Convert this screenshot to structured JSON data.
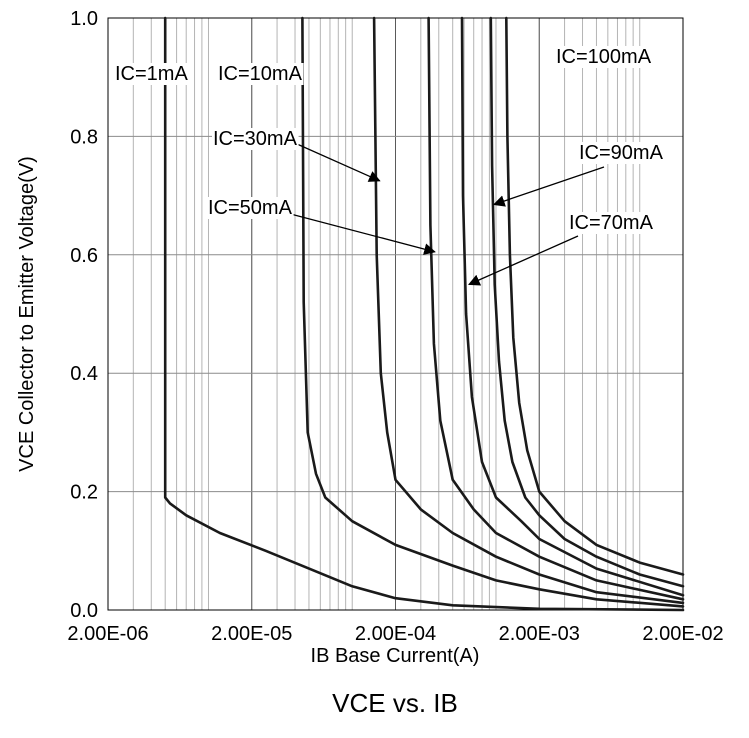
{
  "chart_data": {
    "type": "line",
    "title": "VCE vs. IB",
    "xlabel": "IB Base Current(A)",
    "ylabel": "VCE Collector to Emitter Voltage(V)",
    "x_scale": "log",
    "xlim": [
      2e-06,
      0.02
    ],
    "ylim": [
      0,
      1.0
    ],
    "x_tick_labels": [
      "2.00E-06",
      "2.00E-05",
      "2.00E-04",
      "2.00E-03",
      "2.00E-02"
    ],
    "x_tick_values": [
      2e-06,
      2e-05,
      0.0002,
      0.002,
      0.02
    ],
    "y_tick_labels": [
      "0.0",
      "0.2",
      "0.4",
      "0.6",
      "0.8",
      "1.0"
    ],
    "y_tick_values": [
      0,
      0.2,
      0.4,
      0.6,
      0.8,
      1.0
    ],
    "grid": true,
    "series": [
      {
        "name": "IC=1mA",
        "points": [
          [
            5e-06,
            1.0
          ],
          [
            5e-06,
            0.19
          ],
          [
            5.4e-06,
            0.18
          ],
          [
            7e-06,
            0.16
          ],
          [
            1.2e-05,
            0.13
          ],
          [
            2.5e-05,
            0.1
          ],
          [
            5e-05,
            0.07
          ],
          [
            0.0001,
            0.04
          ],
          [
            0.0002,
            0.02
          ],
          [
            0.0005,
            0.008
          ],
          [
            0.002,
            0.002
          ],
          [
            0.02,
            0.0
          ]
        ]
      },
      {
        "name": "IC=10mA",
        "points": [
          [
            4.5e-05,
            1.0
          ],
          [
            4.6e-05,
            0.52
          ],
          [
            4.9e-05,
            0.3
          ],
          [
            5.6e-05,
            0.23
          ],
          [
            6.5e-05,
            0.19
          ],
          [
            0.0001,
            0.15
          ],
          [
            0.0002,
            0.11
          ],
          [
            0.0005,
            0.075
          ],
          [
            0.001,
            0.05
          ],
          [
            0.002,
            0.035
          ],
          [
            0.005,
            0.018
          ],
          [
            0.02,
            0.006
          ]
        ]
      },
      {
        "name": "IC=30mA",
        "points": [
          [
            0.000142,
            1.0
          ],
          [
            0.000148,
            0.6
          ],
          [
            0.000158,
            0.4
          ],
          [
            0.000175,
            0.3
          ],
          [
            0.0002,
            0.22
          ],
          [
            0.0003,
            0.17
          ],
          [
            0.0005,
            0.13
          ],
          [
            0.001,
            0.09
          ],
          [
            0.002,
            0.06
          ],
          [
            0.005,
            0.03
          ],
          [
            0.02,
            0.012
          ]
        ]
      },
      {
        "name": "IC=50mA",
        "points": [
          [
            0.00034,
            1.0
          ],
          [
            0.00035,
            0.65
          ],
          [
            0.00037,
            0.45
          ],
          [
            0.00041,
            0.32
          ],
          [
            0.0005,
            0.22
          ],
          [
            0.0007,
            0.17
          ],
          [
            0.001,
            0.13
          ],
          [
            0.002,
            0.09
          ],
          [
            0.005,
            0.05
          ],
          [
            0.02,
            0.018
          ]
        ]
      },
      {
        "name": "IC=70mA",
        "points": [
          [
            0.00058,
            1.0
          ],
          [
            0.00059,
            0.7
          ],
          [
            0.00062,
            0.5
          ],
          [
            0.00068,
            0.36
          ],
          [
            0.0008,
            0.25
          ],
          [
            0.001,
            0.19
          ],
          [
            0.0015,
            0.15
          ],
          [
            0.002,
            0.12
          ],
          [
            0.005,
            0.07
          ],
          [
            0.02,
            0.025
          ]
        ]
      },
      {
        "name": "IC=90mA",
        "points": [
          [
            0.00092,
            1.0
          ],
          [
            0.00094,
            0.75
          ],
          [
            0.00098,
            0.55
          ],
          [
            0.00105,
            0.42
          ],
          [
            0.00115,
            0.32
          ],
          [
            0.0013,
            0.25
          ],
          [
            0.0016,
            0.19
          ],
          [
            0.002,
            0.16
          ],
          [
            0.003,
            0.12
          ],
          [
            0.005,
            0.09
          ],
          [
            0.01,
            0.06
          ],
          [
            0.02,
            0.04
          ]
        ]
      },
      {
        "name": "IC=100mA",
        "points": [
          [
            0.00118,
            1.0
          ],
          [
            0.0012,
            0.8
          ],
          [
            0.00125,
            0.6
          ],
          [
            0.00132,
            0.46
          ],
          [
            0.00145,
            0.35
          ],
          [
            0.00165,
            0.27
          ],
          [
            0.002,
            0.2
          ],
          [
            0.003,
            0.15
          ],
          [
            0.005,
            0.11
          ],
          [
            0.01,
            0.08
          ],
          [
            0.02,
            0.06
          ]
        ]
      }
    ],
    "annotations": [
      {
        "text": "IC=1mA",
        "series": "IC=1mA"
      },
      {
        "text": "IC=10mA",
        "series": "IC=10mA"
      },
      {
        "text": "IC=30mA",
        "series": "IC=30mA",
        "arrow_to": [
          0.000155,
          0.725
        ]
      },
      {
        "text": "IC=50mA",
        "series": "IC=50mA",
        "arrow_to": [
          0.000375,
          0.605
        ]
      },
      {
        "text": "IC=70mA",
        "series": "IC=70mA",
        "arrow_to": [
          0.00065,
          0.55
        ]
      },
      {
        "text": "IC=90mA",
        "series": "IC=90mA",
        "arrow_to": [
          0.00097,
          0.685
        ]
      },
      {
        "text": "IC=100mA",
        "series": "IC=100mA"
      }
    ]
  }
}
